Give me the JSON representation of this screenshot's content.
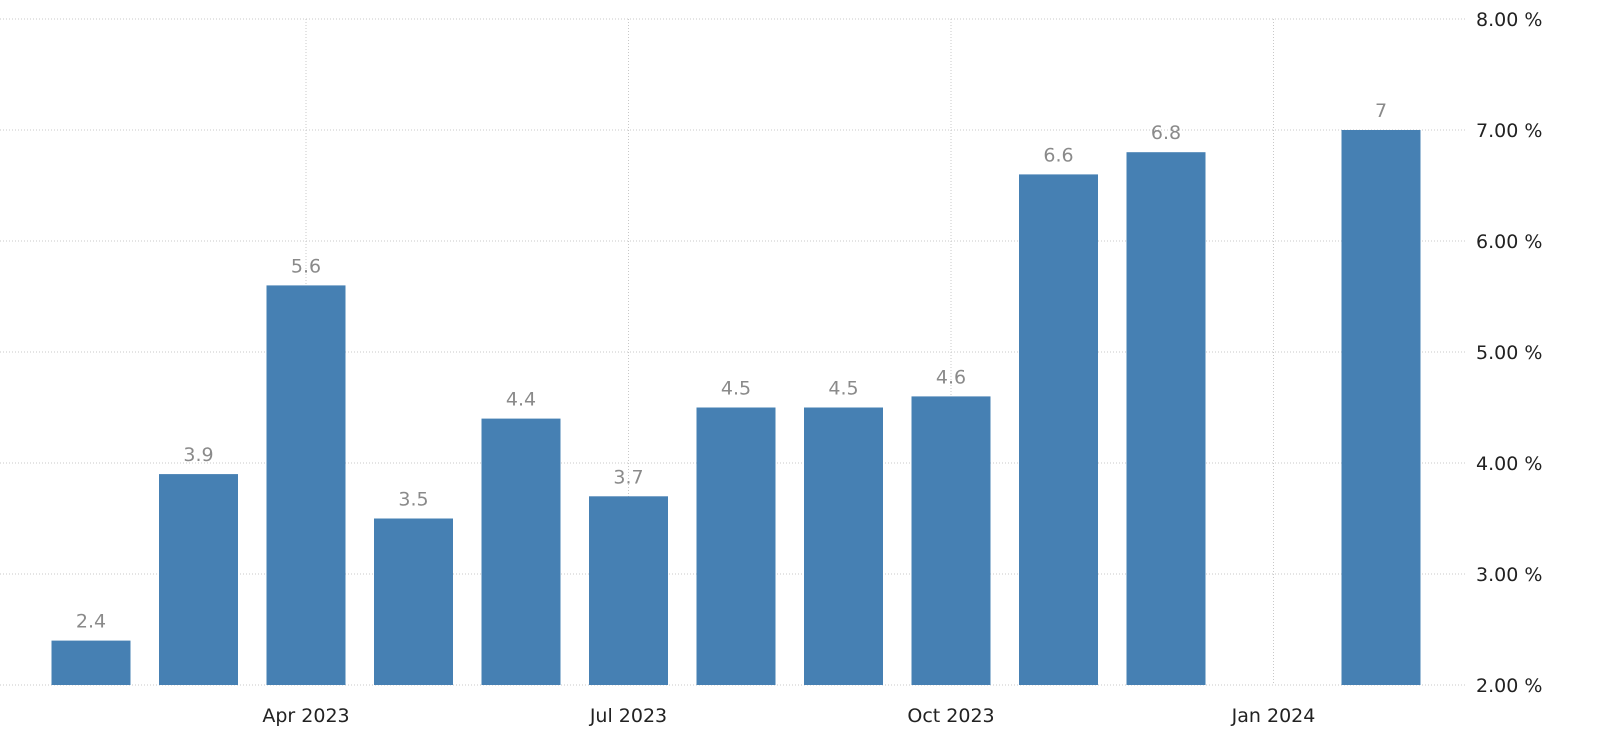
{
  "chart_data": {
    "type": "bar",
    "categories": [
      "Feb 2023",
      "Mar 2023",
      "Apr 2023",
      "May 2023",
      "Jun 2023",
      "Jul 2023",
      "Aug 2023",
      "Sep 2023",
      "Oct 2023",
      "Nov 2023",
      "Dec 2023",
      "Jan 2024",
      "Feb 2024"
    ],
    "values": [
      2.4,
      3.9,
      5.6,
      3.5,
      4.4,
      3.7,
      4.5,
      4.5,
      4.6,
      6.6,
      6.8,
      null,
      7
    ],
    "data_labels": [
      "2.4",
      "3.9",
      "5.6",
      "3.5",
      "4.4",
      "3.7",
      "4.5",
      "4.5",
      "4.6",
      "6.6",
      "6.8",
      "",
      "7"
    ],
    "title": "",
    "xlabel": "",
    "ylabel": "",
    "ylim": [
      2,
      8
    ],
    "y_ticks": [
      2,
      3,
      4,
      5,
      6,
      7,
      8
    ],
    "y_tick_labels": [
      "2.00 %",
      "3.00 %",
      "4.00 %",
      "5.00 %",
      "6.00 %",
      "7.00 %",
      "8.00 %"
    ],
    "x_ticks": [
      {
        "category": "Apr 2023",
        "label": "Apr 2023"
      },
      {
        "category": "Jul 2023",
        "label": "Jul 2023"
      },
      {
        "category": "Oct 2023",
        "label": "Oct 2023"
      },
      {
        "category": "Jan 2024",
        "label": "Jan 2024"
      }
    ],
    "y_axis_position": "right",
    "grid": true,
    "legend": "none",
    "bar_color": "#4680b3"
  }
}
